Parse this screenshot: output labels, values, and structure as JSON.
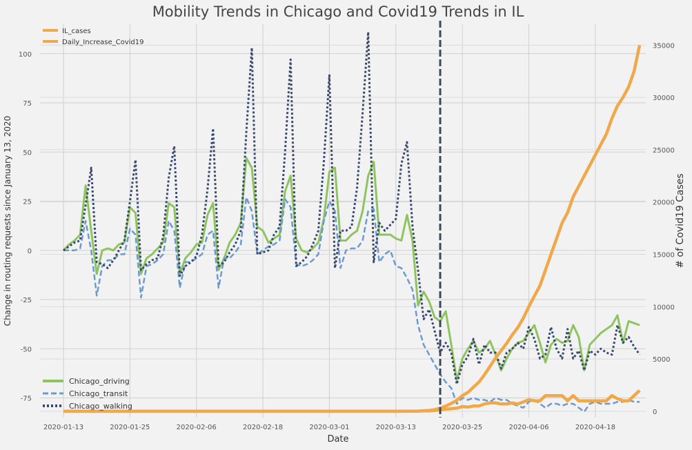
{
  "chart_data": {
    "type": "line",
    "title": "Mobility Trends in Chicago and Covid19 Trends in IL",
    "xlabel": "Date",
    "ylabel_left": "Change in routing requests since January 13, 2020",
    "ylabel_right": "# of Covid19 Cases",
    "x_tick_labels": [
      "2020-01-13",
      "2020-01-25",
      "2020-02-06",
      "2020-02-18",
      "2020-03-01",
      "2020-03-13",
      "2020-03-25",
      "2020-04-06",
      "2020-04-18"
    ],
    "y_left_ticks": [
      "-75",
      "-50",
      "-25",
      "0",
      "25",
      "50",
      "75",
      "100"
    ],
    "y_right_ticks": [
      "0",
      "5000",
      "10000",
      "15000",
      "20000",
      "25000",
      "30000",
      "35000"
    ],
    "y_left_lim": [
      -85,
      115
    ],
    "y_right_lim": [
      -600,
      37000
    ],
    "x_range": [
      "2020-01-13",
      "2020-04-22"
    ],
    "vline_date": "2020-03-21",
    "grid": true,
    "legend_upper": {
      "placement": "top-left",
      "entries": [
        "IL_cases",
        "Daily_Increase_Covid19"
      ]
    },
    "legend_lower": {
      "placement": "bottom-left",
      "entries": [
        "Chicago_driving",
        "Chicago_transit",
        "Chicago_walking"
      ]
    },
    "colors": {
      "driving": "#8dc460",
      "transit": "#6b9ad0",
      "walking": "#3a4a6e",
      "covid": "#f0a848",
      "vline": "#3a4a58"
    },
    "series": [
      {
        "name": "Chicago_driving",
        "axis": "left",
        "style": "solid",
        "color": "#8dc460",
        "values": [
          0,
          3,
          5,
          8,
          33,
          10,
          -12,
          0,
          1,
          0,
          3,
          4,
          22,
          19,
          -12,
          -4,
          -2,
          1,
          4,
          24,
          22,
          -12,
          -4,
          -1,
          3,
          4,
          18,
          24,
          -10,
          -4,
          4,
          8,
          14,
          47,
          42,
          12,
          10,
          4,
          6,
          8,
          30,
          38,
          6,
          0,
          -1,
          1,
          4,
          16,
          40,
          42,
          5,
          5,
          8,
          10,
          20,
          38,
          45,
          8,
          8,
          8,
          6,
          5,
          18,
          5,
          -28,
          -21,
          -26,
          -34,
          -36,
          -31,
          -48,
          -66,
          -55,
          -50,
          -46,
          -52,
          -50,
          -46,
          -53,
          -61,
          -55,
          -50,
          -47,
          -46,
          -42,
          -38,
          -47,
          -57,
          -48,
          -45,
          -47,
          -46,
          -38,
          -44,
          -61,
          -48,
          -45,
          -42,
          -40,
          -38,
          -33,
          -47,
          -36,
          -37,
          -38
        ]
      },
      {
        "name": "Chicago_transit",
        "axis": "left",
        "style": "dashed",
        "color": "#6b9ad0",
        "values": [
          0,
          0,
          0,
          1,
          15,
          0,
          -23,
          -8,
          -5,
          -5,
          -2,
          -2,
          11,
          8,
          -24,
          -8,
          -7,
          -5,
          -2,
          15,
          10,
          -19,
          -6,
          -6,
          -4,
          -2,
          8,
          10,
          -19,
          -4,
          -4,
          -1,
          3,
          27,
          20,
          -2,
          0,
          2,
          3,
          5,
          26,
          22,
          -7,
          -8,
          -7,
          -5,
          -2,
          15,
          25,
          20,
          -9,
          0,
          1,
          1,
          5,
          20,
          21,
          -6,
          -2,
          0,
          -8,
          -9,
          -14,
          -20,
          -38,
          -48,
          -53,
          -58,
          -63,
          -67,
          -70,
          -78,
          -75,
          -76,
          -75,
          -76,
          -76,
          -77,
          -75,
          -76,
          -76,
          -78,
          -79,
          -80,
          -77,
          -76,
          -78,
          -80,
          -78,
          -78,
          -79,
          -78,
          -78,
          -80,
          -82,
          -78,
          -77,
          -78,
          -78,
          -78,
          -77,
          -77,
          -76,
          -77,
          -77
        ]
      },
      {
        "name": "Chicago_walking",
        "axis": "left",
        "style": "dotted",
        "color": "#3a4a6e",
        "values": [
          0,
          2,
          4,
          5,
          23,
          42,
          -6,
          -7,
          -9,
          -5,
          0,
          5,
          25,
          46,
          -10,
          -7,
          -5,
          -4,
          7,
          37,
          53,
          -13,
          -8,
          -6,
          -3,
          8,
          31,
          62,
          -8,
          -6,
          -1,
          3,
          10,
          60,
          103,
          -2,
          -1,
          0,
          8,
          12,
          50,
          97,
          -8,
          -6,
          -3,
          3,
          10,
          45,
          89,
          -9,
          10,
          10,
          12,
          32,
          70,
          111,
          -6,
          14,
          10,
          13,
          16,
          44,
          55,
          12,
          -10,
          -35,
          -30,
          -41,
          -52,
          -47,
          -52,
          -68,
          -58,
          -54,
          -45,
          -58,
          -48,
          -52,
          -52,
          -60,
          -52,
          -50,
          -47,
          -50,
          -39,
          -45,
          -55,
          -53,
          -39,
          -50,
          -55,
          -40,
          -55,
          -51,
          -61,
          -51,
          -53,
          -50,
          -52,
          -53,
          -38,
          -47,
          -44,
          -49,
          -53
        ]
      },
      {
        "name": "IL_cases",
        "axis": "right",
        "style": "solid",
        "color": "#f0a848",
        "values": [
          0,
          0,
          0,
          0,
          0,
          0,
          0,
          0,
          0,
          0,
          0,
          0,
          0,
          0,
          0,
          0,
          0,
          0,
          0,
          0,
          0,
          0,
          0,
          0,
          0,
          0,
          0,
          0,
          0,
          0,
          0,
          0,
          0,
          0,
          0,
          0,
          0,
          0,
          0,
          0,
          0,
          0,
          0,
          0,
          0,
          0,
          0,
          0,
          0,
          0,
          0,
          0,
          0,
          0,
          0,
          0,
          0,
          1,
          1,
          1,
          2,
          4,
          5,
          10,
          20,
          50,
          80,
          150,
          300,
          500,
          750,
          1050,
          1500,
          1800,
          2300,
          2800,
          3500,
          4300,
          5100,
          5800,
          6500,
          7300,
          8000,
          8900,
          10000,
          11000,
          12000,
          13500,
          15000,
          16500,
          18000,
          19000,
          20500,
          21500,
          22500,
          23500,
          24500,
          25500,
          26500,
          28000,
          29200,
          30000,
          31000,
          32500,
          35000
        ]
      },
      {
        "name": "Daily_Increase_Covid19",
        "axis": "right",
        "style": "solid",
        "color": "#f0a848",
        "values": [
          0,
          0,
          0,
          0,
          0,
          0,
          0,
          0,
          0,
          0,
          0,
          0,
          0,
          0,
          0,
          0,
          0,
          0,
          0,
          0,
          0,
          0,
          0,
          0,
          0,
          0,
          0,
          0,
          0,
          0,
          0,
          0,
          0,
          0,
          0,
          0,
          0,
          0,
          0,
          0,
          0,
          0,
          0,
          0,
          0,
          0,
          0,
          0,
          0,
          0,
          0,
          0,
          0,
          0,
          0,
          0,
          0,
          0,
          0,
          0,
          1,
          2,
          1,
          5,
          10,
          30,
          30,
          70,
          150,
          200,
          250,
          300,
          450,
          400,
          500,
          500,
          700,
          800,
          800,
          700,
          700,
          800,
          700,
          900,
          1100,
          1000,
          1000,
          1500,
          1500,
          1500,
          1500,
          1000,
          1500,
          1000,
          1000,
          1000,
          1000,
          1000,
          1000,
          1500,
          1200,
          1000,
          1000,
          1500,
          2000
        ]
      }
    ]
  }
}
